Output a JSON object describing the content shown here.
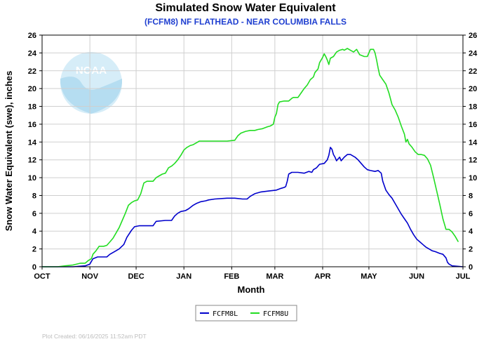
{
  "chart_data": {
    "type": "line",
    "title": "Simulated Snow Water Equivalent",
    "subtitle": "(FCFM8) NF FLATHEAD - NEAR COLUMBIA FALLS",
    "xlabel": "Month",
    "ylabel": "Snow Water Equivalent (swe),  inches",
    "x_tick_labels": [
      "OCT",
      "NOV",
      "DEC",
      "JAN",
      "FEB",
      "MAR",
      "APR",
      "MAY",
      "JUN",
      "JUL"
    ],
    "x_unit": "days since Oct 1",
    "xlim": [
      0,
      273
    ],
    "ylim": [
      0,
      26
    ],
    "y_ticks": [
      0,
      2,
      4,
      6,
      8,
      10,
      12,
      14,
      16,
      18,
      20,
      22,
      24,
      26
    ],
    "grid": true,
    "legend_position": "bottom-center",
    "series": [
      {
        "name": "FCFM8L",
        "color": "#0000cc",
        "points": [
          [
            0,
            0
          ],
          [
            20,
            0
          ],
          [
            28,
            0.1
          ],
          [
            31,
            0.3
          ],
          [
            33,
            0.9
          ],
          [
            36,
            1.1
          ],
          [
            40,
            1.1
          ],
          [
            42,
            1.1
          ],
          [
            44,
            1.4
          ],
          [
            47,
            1.7
          ],
          [
            50,
            2.0
          ],
          [
            53,
            2.5
          ],
          [
            55,
            3.3
          ],
          [
            58,
            4.1
          ],
          [
            60,
            4.5
          ],
          [
            63,
            4.6
          ],
          [
            70,
            4.6
          ],
          [
            72,
            4.6
          ],
          [
            74,
            5.1
          ],
          [
            80,
            5.2
          ],
          [
            84,
            5.2
          ],
          [
            86,
            5.7
          ],
          [
            88,
            6.0
          ],
          [
            90,
            6.2
          ],
          [
            93,
            6.3
          ],
          [
            95,
            6.5
          ],
          [
            98,
            6.9
          ],
          [
            100,
            7.1
          ],
          [
            103,
            7.3
          ],
          [
            106,
            7.4
          ],
          [
            108,
            7.5
          ],
          [
            112,
            7.6
          ],
          [
            120,
            7.7
          ],
          [
            125,
            7.7
          ],
          [
            130,
            7.6
          ],
          [
            133,
            7.6
          ],
          [
            135,
            7.9
          ],
          [
            138,
            8.2
          ],
          [
            142,
            8.4
          ],
          [
            147,
            8.5
          ],
          [
            152,
            8.6
          ],
          [
            155,
            8.8
          ],
          [
            157,
            8.9
          ],
          [
            158,
            9.0
          ],
          [
            159,
            9.6
          ],
          [
            160,
            10.4
          ],
          [
            162,
            10.6
          ],
          [
            166,
            10.6
          ],
          [
            170,
            10.5
          ],
          [
            173,
            10.7
          ],
          [
            175,
            10.6
          ],
          [
            176,
            10.9
          ],
          [
            178,
            11.1
          ],
          [
            180,
            11.5
          ],
          [
            183,
            11.6
          ],
          [
            185,
            12.0
          ],
          [
            186,
            12.5
          ],
          [
            187,
            13.4
          ],
          [
            188,
            13.2
          ],
          [
            189,
            12.6
          ],
          [
            190,
            12.3
          ],
          [
            191,
            11.9
          ],
          [
            192,
            12.1
          ],
          [
            193,
            12.3
          ],
          [
            194,
            11.9
          ],
          [
            196,
            12.3
          ],
          [
            198,
            12.6
          ],
          [
            200,
            12.6
          ],
          [
            203,
            12.3
          ],
          [
            205,
            12.0
          ],
          [
            207,
            11.6
          ],
          [
            209,
            11.2
          ],
          [
            211,
            10.9
          ],
          [
            213,
            10.8
          ],
          [
            216,
            10.7
          ],
          [
            218,
            10.8
          ],
          [
            220,
            10.5
          ],
          [
            221,
            9.6
          ],
          [
            222,
            9.1
          ],
          [
            223,
            8.6
          ],
          [
            225,
            8.1
          ],
          [
            227,
            7.7
          ],
          [
            229,
            7.1
          ],
          [
            231,
            6.5
          ],
          [
            233,
            5.9
          ],
          [
            235,
            5.4
          ],
          [
            237,
            4.9
          ],
          [
            239,
            4.2
          ],
          [
            241,
            3.6
          ],
          [
            243,
            3.1
          ],
          [
            245,
            2.8
          ],
          [
            247,
            2.5
          ],
          [
            249,
            2.2
          ],
          [
            251,
            2.0
          ],
          [
            253,
            1.8
          ],
          [
            255,
            1.7
          ],
          [
            258,
            1.5
          ],
          [
            260,
            1.4
          ],
          [
            262,
            1.0
          ],
          [
            263,
            0.5
          ],
          [
            264,
            0.3
          ],
          [
            266,
            0.1
          ],
          [
            270,
            0.05
          ],
          [
            273,
            0
          ]
        ]
      },
      {
        "name": "FCFM8U",
        "color": "#22dd22",
        "points": [
          [
            0,
            0
          ],
          [
            10,
            0
          ],
          [
            15,
            0.1
          ],
          [
            20,
            0.2
          ],
          [
            25,
            0.4
          ],
          [
            28,
            0.4
          ],
          [
            30,
            0.7
          ],
          [
            32,
            0.9
          ],
          [
            33,
            1.4
          ],
          [
            35,
            1.8
          ],
          [
            37,
            2.3
          ],
          [
            40,
            2.3
          ],
          [
            42,
            2.4
          ],
          [
            44,
            2.8
          ],
          [
            46,
            3.2
          ],
          [
            48,
            3.8
          ],
          [
            50,
            4.4
          ],
          [
            52,
            5.2
          ],
          [
            54,
            6.0
          ],
          [
            56,
            6.9
          ],
          [
            58,
            7.2
          ],
          [
            60,
            7.4
          ],
          [
            62,
            7.5
          ],
          [
            64,
            8.2
          ],
          [
            66,
            9.4
          ],
          [
            68,
            9.6
          ],
          [
            70,
            9.6
          ],
          [
            72,
            9.6
          ],
          [
            74,
            10.0
          ],
          [
            76,
            10.2
          ],
          [
            78,
            10.4
          ],
          [
            80,
            10.5
          ],
          [
            82,
            11.1
          ],
          [
            84,
            11.3
          ],
          [
            86,
            11.6
          ],
          [
            88,
            12.0
          ],
          [
            90,
            12.5
          ],
          [
            92,
            13.1
          ],
          [
            94,
            13.4
          ],
          [
            96,
            13.6
          ],
          [
            98,
            13.7
          ],
          [
            100,
            13.9
          ],
          [
            102,
            14.1
          ],
          [
            104,
            14.1
          ],
          [
            110,
            14.1
          ],
          [
            120,
            14.1
          ],
          [
            125,
            14.2
          ],
          [
            127,
            14.7
          ],
          [
            129,
            15.0
          ],
          [
            132,
            15.2
          ],
          [
            135,
            15.3
          ],
          [
            138,
            15.3
          ],
          [
            140,
            15.4
          ],
          [
            143,
            15.5
          ],
          [
            146,
            15.7
          ],
          [
            148,
            15.8
          ],
          [
            150,
            16.0
          ],
          [
            151,
            16.8
          ],
          [
            152,
            17.2
          ],
          [
            153,
            18.2
          ],
          [
            154,
            18.5
          ],
          [
            157,
            18.6
          ],
          [
            160,
            18.6
          ],
          [
            162,
            18.9
          ],
          [
            163,
            19.0
          ],
          [
            166,
            19.0
          ],
          [
            168,
            19.5
          ],
          [
            170,
            20.0
          ],
          [
            172,
            20.4
          ],
          [
            174,
            21.0
          ],
          [
            176,
            21.3
          ],
          [
            177,
            21.8
          ],
          [
            179,
            22.2
          ],
          [
            180,
            22.9
          ],
          [
            182,
            23.5
          ],
          [
            183,
            23.9
          ],
          [
            184,
            23.6
          ],
          [
            185,
            23.2
          ],
          [
            186,
            22.7
          ],
          [
            187,
            23.4
          ],
          [
            189,
            23.6
          ],
          [
            191,
            24.1
          ],
          [
            193,
            24.3
          ],
          [
            195,
            24.4
          ],
          [
            196,
            24.3
          ],
          [
            198,
            24.5
          ],
          [
            200,
            24.3
          ],
          [
            202,
            24.1
          ],
          [
            204,
            24.4
          ],
          [
            206,
            23.8
          ],
          [
            209,
            23.6
          ],
          [
            211,
            23.6
          ],
          [
            213,
            24.4
          ],
          [
            215,
            24.4
          ],
          [
            216,
            24.0
          ],
          [
            217,
            23.2
          ],
          [
            218,
            22.3
          ],
          [
            219,
            21.5
          ],
          [
            221,
            21.0
          ],
          [
            223,
            20.5
          ],
          [
            225,
            19.5
          ],
          [
            227,
            18.2
          ],
          [
            229,
            17.6
          ],
          [
            231,
            16.8
          ],
          [
            233,
            15.8
          ],
          [
            235,
            14.9
          ],
          [
            236,
            14.0
          ],
          [
            237,
            14.3
          ],
          [
            238,
            13.8
          ],
          [
            240,
            13.4
          ],
          [
            242,
            12.9
          ],
          [
            244,
            12.6
          ],
          [
            246,
            12.6
          ],
          [
            248,
            12.5
          ],
          [
            250,
            12.1
          ],
          [
            252,
            11.4
          ],
          [
            254,
            10.0
          ],
          [
            256,
            8.5
          ],
          [
            258,
            7.0
          ],
          [
            260,
            5.4
          ],
          [
            262,
            4.2
          ],
          [
            264,
            4.2
          ],
          [
            266,
            3.9
          ],
          [
            268,
            3.4
          ],
          [
            270,
            2.8
          ]
        ]
      }
    ]
  },
  "legend": {
    "items": [
      {
        "label": "FCFM8L",
        "color": "#0000cc"
      },
      {
        "label": "FCFM8U",
        "color": "#22dd22"
      }
    ]
  },
  "logo": {
    "text": "NOAA",
    "icon": "noaa-logo-icon"
  },
  "footer": {
    "text": "Plot Created:  06/16/2025 11:52am PDT"
  },
  "colors": {
    "grid": "#cfcfcf",
    "subtitle": "#1f3fd0",
    "legend_border": "#888888",
    "logo": "#b9dff2"
  }
}
